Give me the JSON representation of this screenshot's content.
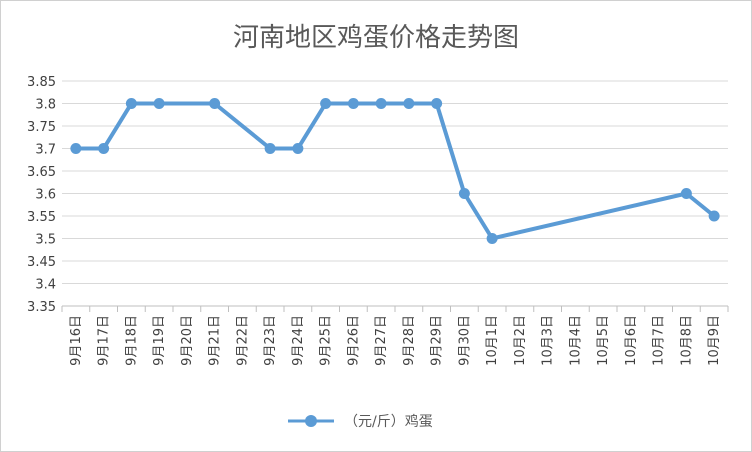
{
  "chart_data": {
    "type": "line",
    "title": "河南地区鸡蛋价格走势图",
    "xlabel": "",
    "ylabel": "",
    "categories": [
      "9月16日",
      "9月17日",
      "9月18日",
      "9月19日",
      "9月20日",
      "9月21日",
      "9月22日",
      "9月23日",
      "9月24日",
      "9月25日",
      "9月26日",
      "9月27日",
      "9月28日",
      "9月29日",
      "9月30日",
      "10月1日",
      "10月2日",
      "10月3日",
      "10月4日",
      "10月5日",
      "10月6日",
      "10月7日",
      "10月8日",
      "10月9日"
    ],
    "yticks": [
      "3.35",
      "3.4",
      "3.45",
      "3.5",
      "3.55",
      "3.6",
      "3.65",
      "3.7",
      "3.75",
      "3.8",
      "3.85"
    ],
    "ylim": [
      3.35,
      3.85
    ],
    "grid": true,
    "legend_position": "bottom",
    "series": [
      {
        "name": "（元/斤）鸡蛋",
        "color": "#5b9bd5",
        "points": [
          {
            "x": "9月16日",
            "y": 3.7
          },
          {
            "x": "9月17日",
            "y": 3.7
          },
          {
            "x": "9月18日",
            "y": 3.8
          },
          {
            "x": "9月19日",
            "y": 3.8
          },
          {
            "x": "9月21日",
            "y": 3.8
          },
          {
            "x": "9月23日",
            "y": 3.7
          },
          {
            "x": "9月24日",
            "y": 3.7
          },
          {
            "x": "9月25日",
            "y": 3.8
          },
          {
            "x": "9月26日",
            "y": 3.8
          },
          {
            "x": "9月27日",
            "y": 3.8
          },
          {
            "x": "9月28日",
            "y": 3.8
          },
          {
            "x": "9月29日",
            "y": 3.8
          },
          {
            "x": "9月30日",
            "y": 3.6
          },
          {
            "x": "10月1日",
            "y": 3.5
          },
          {
            "x": "10月8日",
            "y": 3.6
          },
          {
            "x": "10月9日",
            "y": 3.55
          }
        ]
      }
    ]
  }
}
